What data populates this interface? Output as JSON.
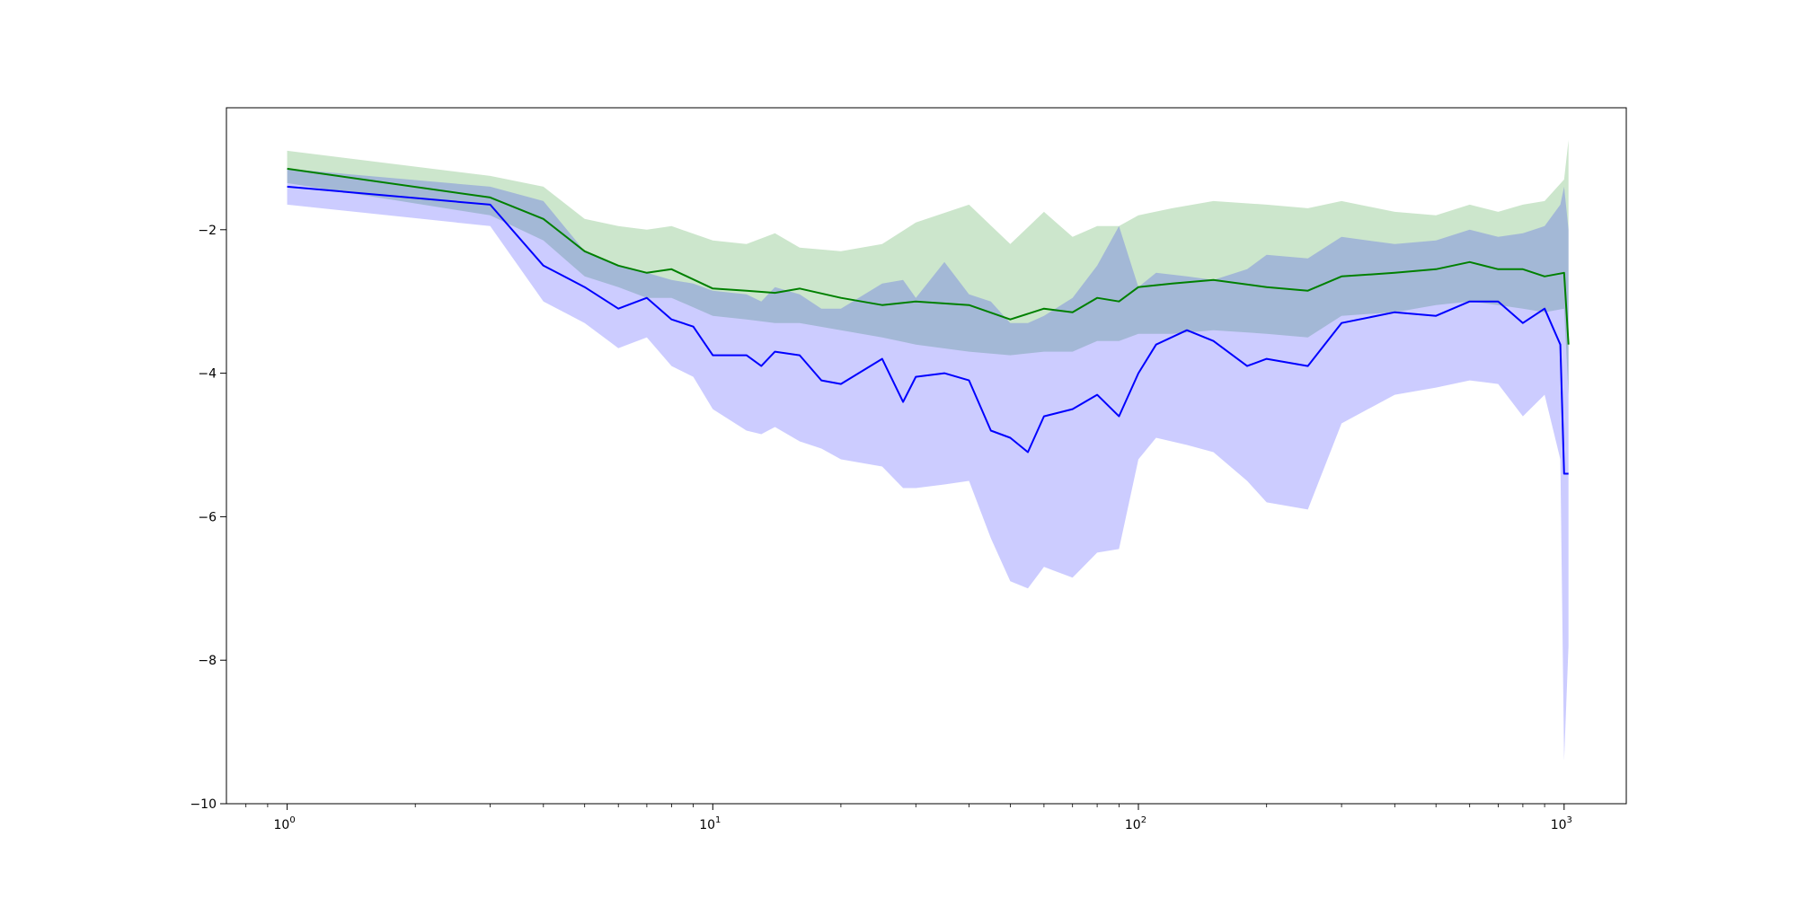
{
  "chart_data": {
    "type": "line",
    "title": "",
    "xlabel": "",
    "ylabel": "",
    "xscale": "log",
    "xlim": [
      0.72,
      1400
    ],
    "ylim": [
      -10,
      -0.3
    ],
    "grid": false,
    "legend": "none",
    "x_ticks": [
      {
        "base": "10",
        "exp": "0",
        "value": 1
      },
      {
        "base": "10",
        "exp": "1",
        "value": 10
      },
      {
        "base": "10",
        "exp": "2",
        "value": 100
      },
      {
        "base": "10",
        "exp": "3",
        "value": 1000
      }
    ],
    "y_ticks": [
      {
        "label": "−2",
        "value": -2
      },
      {
        "label": "−4",
        "value": -4
      },
      {
        "label": "−6",
        "value": -6
      },
      {
        "label": "−8",
        "value": -8
      },
      {
        "label": "−10",
        "value": -10
      }
    ],
    "series": [
      {
        "color": "#008000",
        "band_color": "#008000",
        "band_opacity": 0.2,
        "x": [
          1,
          3,
          4,
          5,
          6,
          7,
          8,
          10,
          12,
          14,
          16,
          20,
          25,
          30,
          40,
          50,
          60,
          70,
          80,
          90,
          100,
          120,
          150,
          200,
          250,
          300,
          400,
          500,
          600,
          700,
          800,
          900,
          1000,
          1024
        ],
        "y": [
          -1.15,
          -1.55,
          -1.85,
          -2.3,
          -2.5,
          -2.6,
          -2.55,
          -2.82,
          -2.85,
          -2.88,
          -2.82,
          -2.95,
          -3.05,
          -3.0,
          -3.05,
          -3.25,
          -3.1,
          -3.15,
          -2.95,
          -3.0,
          -2.8,
          -2.75,
          -2.7,
          -2.8,
          -2.85,
          -2.65,
          -2.6,
          -2.55,
          -2.45,
          -2.55,
          -2.55,
          -2.65,
          -2.6,
          -3.6
        ],
        "lower": [
          -1.35,
          -1.8,
          -2.15,
          -2.65,
          -2.8,
          -2.95,
          -2.95,
          -3.2,
          -3.25,
          -3.3,
          -3.3,
          -3.4,
          -3.5,
          -3.6,
          -3.7,
          -3.75,
          -3.7,
          -3.7,
          -3.55,
          -3.55,
          -3.45,
          -3.45,
          -3.4,
          -3.45,
          -3.5,
          -3.2,
          -3.15,
          -3.05,
          -3.0,
          -3.05,
          -3.1,
          -3.15,
          -3.1,
          -4.3
        ],
        "upper": [
          -0.9,
          -1.25,
          -1.4,
          -1.85,
          -1.95,
          -2.0,
          -1.95,
          -2.15,
          -2.2,
          -2.05,
          -2.25,
          -2.3,
          -2.2,
          -1.9,
          -1.65,
          -2.2,
          -1.75,
          -2.1,
          -1.95,
          -1.95,
          -1.8,
          -1.7,
          -1.6,
          -1.65,
          -1.7,
          -1.6,
          -1.75,
          -1.8,
          -1.65,
          -1.75,
          -1.65,
          -1.6,
          -1.3,
          -0.75
        ]
      },
      {
        "color": "#0000ff",
        "band_color": "#0000ff",
        "band_opacity": 0.2,
        "x": [
          1,
          3,
          4,
          5,
          6,
          7,
          8,
          9,
          10,
          12,
          13,
          14,
          16,
          18,
          20,
          25,
          28,
          30,
          35,
          40,
          45,
          50,
          55,
          60,
          70,
          80,
          90,
          100,
          110,
          130,
          150,
          180,
          200,
          250,
          300,
          400,
          500,
          600,
          700,
          800,
          900,
          980,
          1000,
          1024
        ],
        "y": [
          -1.4,
          -1.65,
          -2.5,
          -2.8,
          -3.1,
          -2.95,
          -3.25,
          -3.35,
          -3.75,
          -3.75,
          -3.9,
          -3.7,
          -3.75,
          -4.1,
          -4.15,
          -3.8,
          -4.4,
          -4.05,
          -4.0,
          -4.1,
          -4.8,
          -4.9,
          -5.1,
          -4.6,
          -4.5,
          -4.3,
          -4.6,
          -4.0,
          -3.6,
          -3.4,
          -3.55,
          -3.9,
          -3.8,
          -3.9,
          -3.3,
          -3.15,
          -3.2,
          -3.0,
          -3.0,
          -3.3,
          -3.1,
          -3.6,
          -5.4,
          -5.4
        ],
        "lower": [
          -1.65,
          -1.95,
          -3.0,
          -3.3,
          -3.65,
          -3.5,
          -3.9,
          -4.05,
          -4.5,
          -4.8,
          -4.85,
          -4.75,
          -4.95,
          -5.05,
          -5.2,
          -5.3,
          -5.6,
          -5.6,
          -5.55,
          -5.5,
          -6.3,
          -6.9,
          -7.0,
          -6.7,
          -6.85,
          -6.5,
          -6.45,
          -5.2,
          -4.9,
          -5.0,
          -5.1,
          -5.5,
          -5.8,
          -5.9,
          -4.7,
          -4.3,
          -4.2,
          -4.1,
          -4.15,
          -4.6,
          -4.3,
          -5.2,
          -9.4,
          -7.8
        ],
        "upper": [
          -1.15,
          -1.4,
          -1.6,
          -2.3,
          -2.5,
          -2.6,
          -2.7,
          -2.75,
          -2.85,
          -2.9,
          -3.0,
          -2.8,
          -2.9,
          -3.1,
          -3.1,
          -2.75,
          -2.7,
          -2.95,
          -2.45,
          -2.9,
          -3.0,
          -3.3,
          -3.3,
          -3.2,
          -2.95,
          -2.5,
          -1.95,
          -2.8,
          -2.6,
          -2.65,
          -2.7,
          -2.55,
          -2.35,
          -2.4,
          -2.1,
          -2.2,
          -2.15,
          -2.0,
          -2.1,
          -2.05,
          -1.95,
          -1.65,
          -1.4,
          -2.0
        ]
      }
    ]
  }
}
